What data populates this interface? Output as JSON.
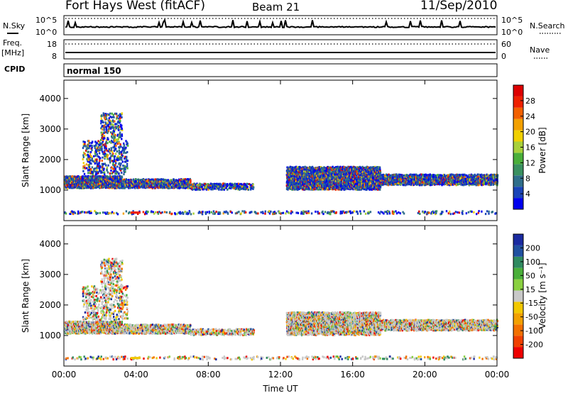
{
  "header": {
    "station": "Fort Hays West (fitACF)",
    "beam": "Beam 21",
    "date": "11/Sep/2010"
  },
  "noise_panel": {
    "left_label": "N.Sky",
    "right_label": "N.Search",
    "tick_high": "10^5",
    "tick_low": "10^0",
    "right_tick_high": "10^5",
    "right_tick_low": "10^0"
  },
  "freq_panel": {
    "left_label_1": "Freq.",
    "left_label_2": "[MHz]",
    "right_label": "Nave",
    "left_tick_high": "18",
    "left_tick_low": "8",
    "right_tick_high": "60",
    "right_tick_low": "0"
  },
  "cpid_panel": {
    "label": "CPID",
    "value": "normal 150"
  },
  "colorbars": {
    "power": {
      "label": "Power [dB]",
      "ticks": [
        "4",
        "8",
        "12",
        "16",
        "20",
        "24",
        "28"
      ],
      "colors": [
        "#0000ee",
        "#1a44b8",
        "#2f6e8a",
        "#3a9060",
        "#4aaf3a",
        "#a8d03a",
        "#f0d000",
        "#f2a000",
        "#f26000",
        "#ee2000",
        "#dd0000"
      ]
    },
    "velocity": {
      "label": "Velocity [m s⁻¹]",
      "ticks": [
        "-200",
        "-100",
        "-50",
        "-15",
        "15",
        "50",
        "100",
        "200"
      ],
      "colors": [
        "#ee0000",
        "#f04000",
        "#f27000",
        "#f2a000",
        "#f2c800",
        "#c8c8c8",
        "#8ad040",
        "#4aaf3a",
        "#2f8a60",
        "#2050a0",
        "#1a2aa0"
      ]
    }
  },
  "chart_data": [
    {
      "type": "heatmap",
      "name": "power",
      "ylabel": "Slant Range [km]",
      "xlabel": "Time UT",
      "ylim": [
        0,
        4600
      ],
      "yticks": [
        1000,
        2000,
        3000,
        4000
      ],
      "xlim": [
        0,
        24
      ],
      "xticks": [
        0,
        4,
        8,
        12,
        16,
        20,
        24
      ],
      "xticklabels": [
        "00:00",
        "04:00",
        "08:00",
        "12:00",
        "16:00",
        "20:00",
        "00:00"
      ],
      "scatter_bands": [
        {
          "t0": 0.0,
          "t1": 3.2,
          "r0": 1050,
          "r1": 1450,
          "dense": 1
        },
        {
          "t0": 1.0,
          "t1": 3.5,
          "r0": 1500,
          "r1": 2600,
          "dense": 0.25
        },
        {
          "t0": 2.0,
          "t1": 3.2,
          "r0": 2600,
          "r1": 3500,
          "dense": 0.3
        },
        {
          "t0": 3.2,
          "t1": 7.0,
          "r0": 1050,
          "r1": 1350,
          "dense": 0.85
        },
        {
          "t0": 7.0,
          "t1": 10.5,
          "r0": 1000,
          "r1": 1200,
          "dense": 0.7
        },
        {
          "t0": 12.3,
          "t1": 17.5,
          "r0": 1000,
          "r1": 1750,
          "dense": 0.9
        },
        {
          "t0": 17.5,
          "t1": 24.0,
          "r0": 1150,
          "r1": 1500,
          "dense": 0.85
        },
        {
          "t0": 0.0,
          "t1": 24.0,
          "r0": 200,
          "r1": 300,
          "dense": 0.25
        }
      ]
    },
    {
      "type": "heatmap",
      "name": "velocity",
      "ylabel": "Slant Range [km]",
      "xlabel": "Time UT",
      "ylim": [
        0,
        4600
      ],
      "yticks": [
        1000,
        2000,
        3000,
        4000
      ],
      "xlim": [
        0,
        24
      ],
      "xticks": [
        0,
        4,
        8,
        12,
        16,
        20,
        24
      ],
      "xticklabels": [
        "00:00",
        "04:00",
        "08:00",
        "12:00",
        "16:00",
        "20:00",
        "00:00"
      ],
      "scatter_bands": [
        {
          "t0": 0.0,
          "t1": 3.2,
          "r0": 1050,
          "r1": 1450,
          "dense": 1
        },
        {
          "t0": 1.0,
          "t1": 3.5,
          "r0": 1500,
          "r1": 2600,
          "dense": 0.25
        },
        {
          "t0": 2.0,
          "t1": 3.2,
          "r0": 2600,
          "r1": 3500,
          "dense": 0.3
        },
        {
          "t0": 3.2,
          "t1": 7.0,
          "r0": 1050,
          "r1": 1350,
          "dense": 0.85
        },
        {
          "t0": 7.0,
          "t1": 10.5,
          "r0": 1000,
          "r1": 1200,
          "dense": 0.7
        },
        {
          "t0": 12.3,
          "t1": 17.5,
          "r0": 1000,
          "r1": 1750,
          "dense": 0.9
        },
        {
          "t0": 17.5,
          "t1": 24.0,
          "r0": 1150,
          "r1": 1500,
          "dense": 0.85
        },
        {
          "t0": 0.0,
          "t1": 24.0,
          "r0": 200,
          "r1": 300,
          "dense": 0.25
        }
      ]
    }
  ]
}
